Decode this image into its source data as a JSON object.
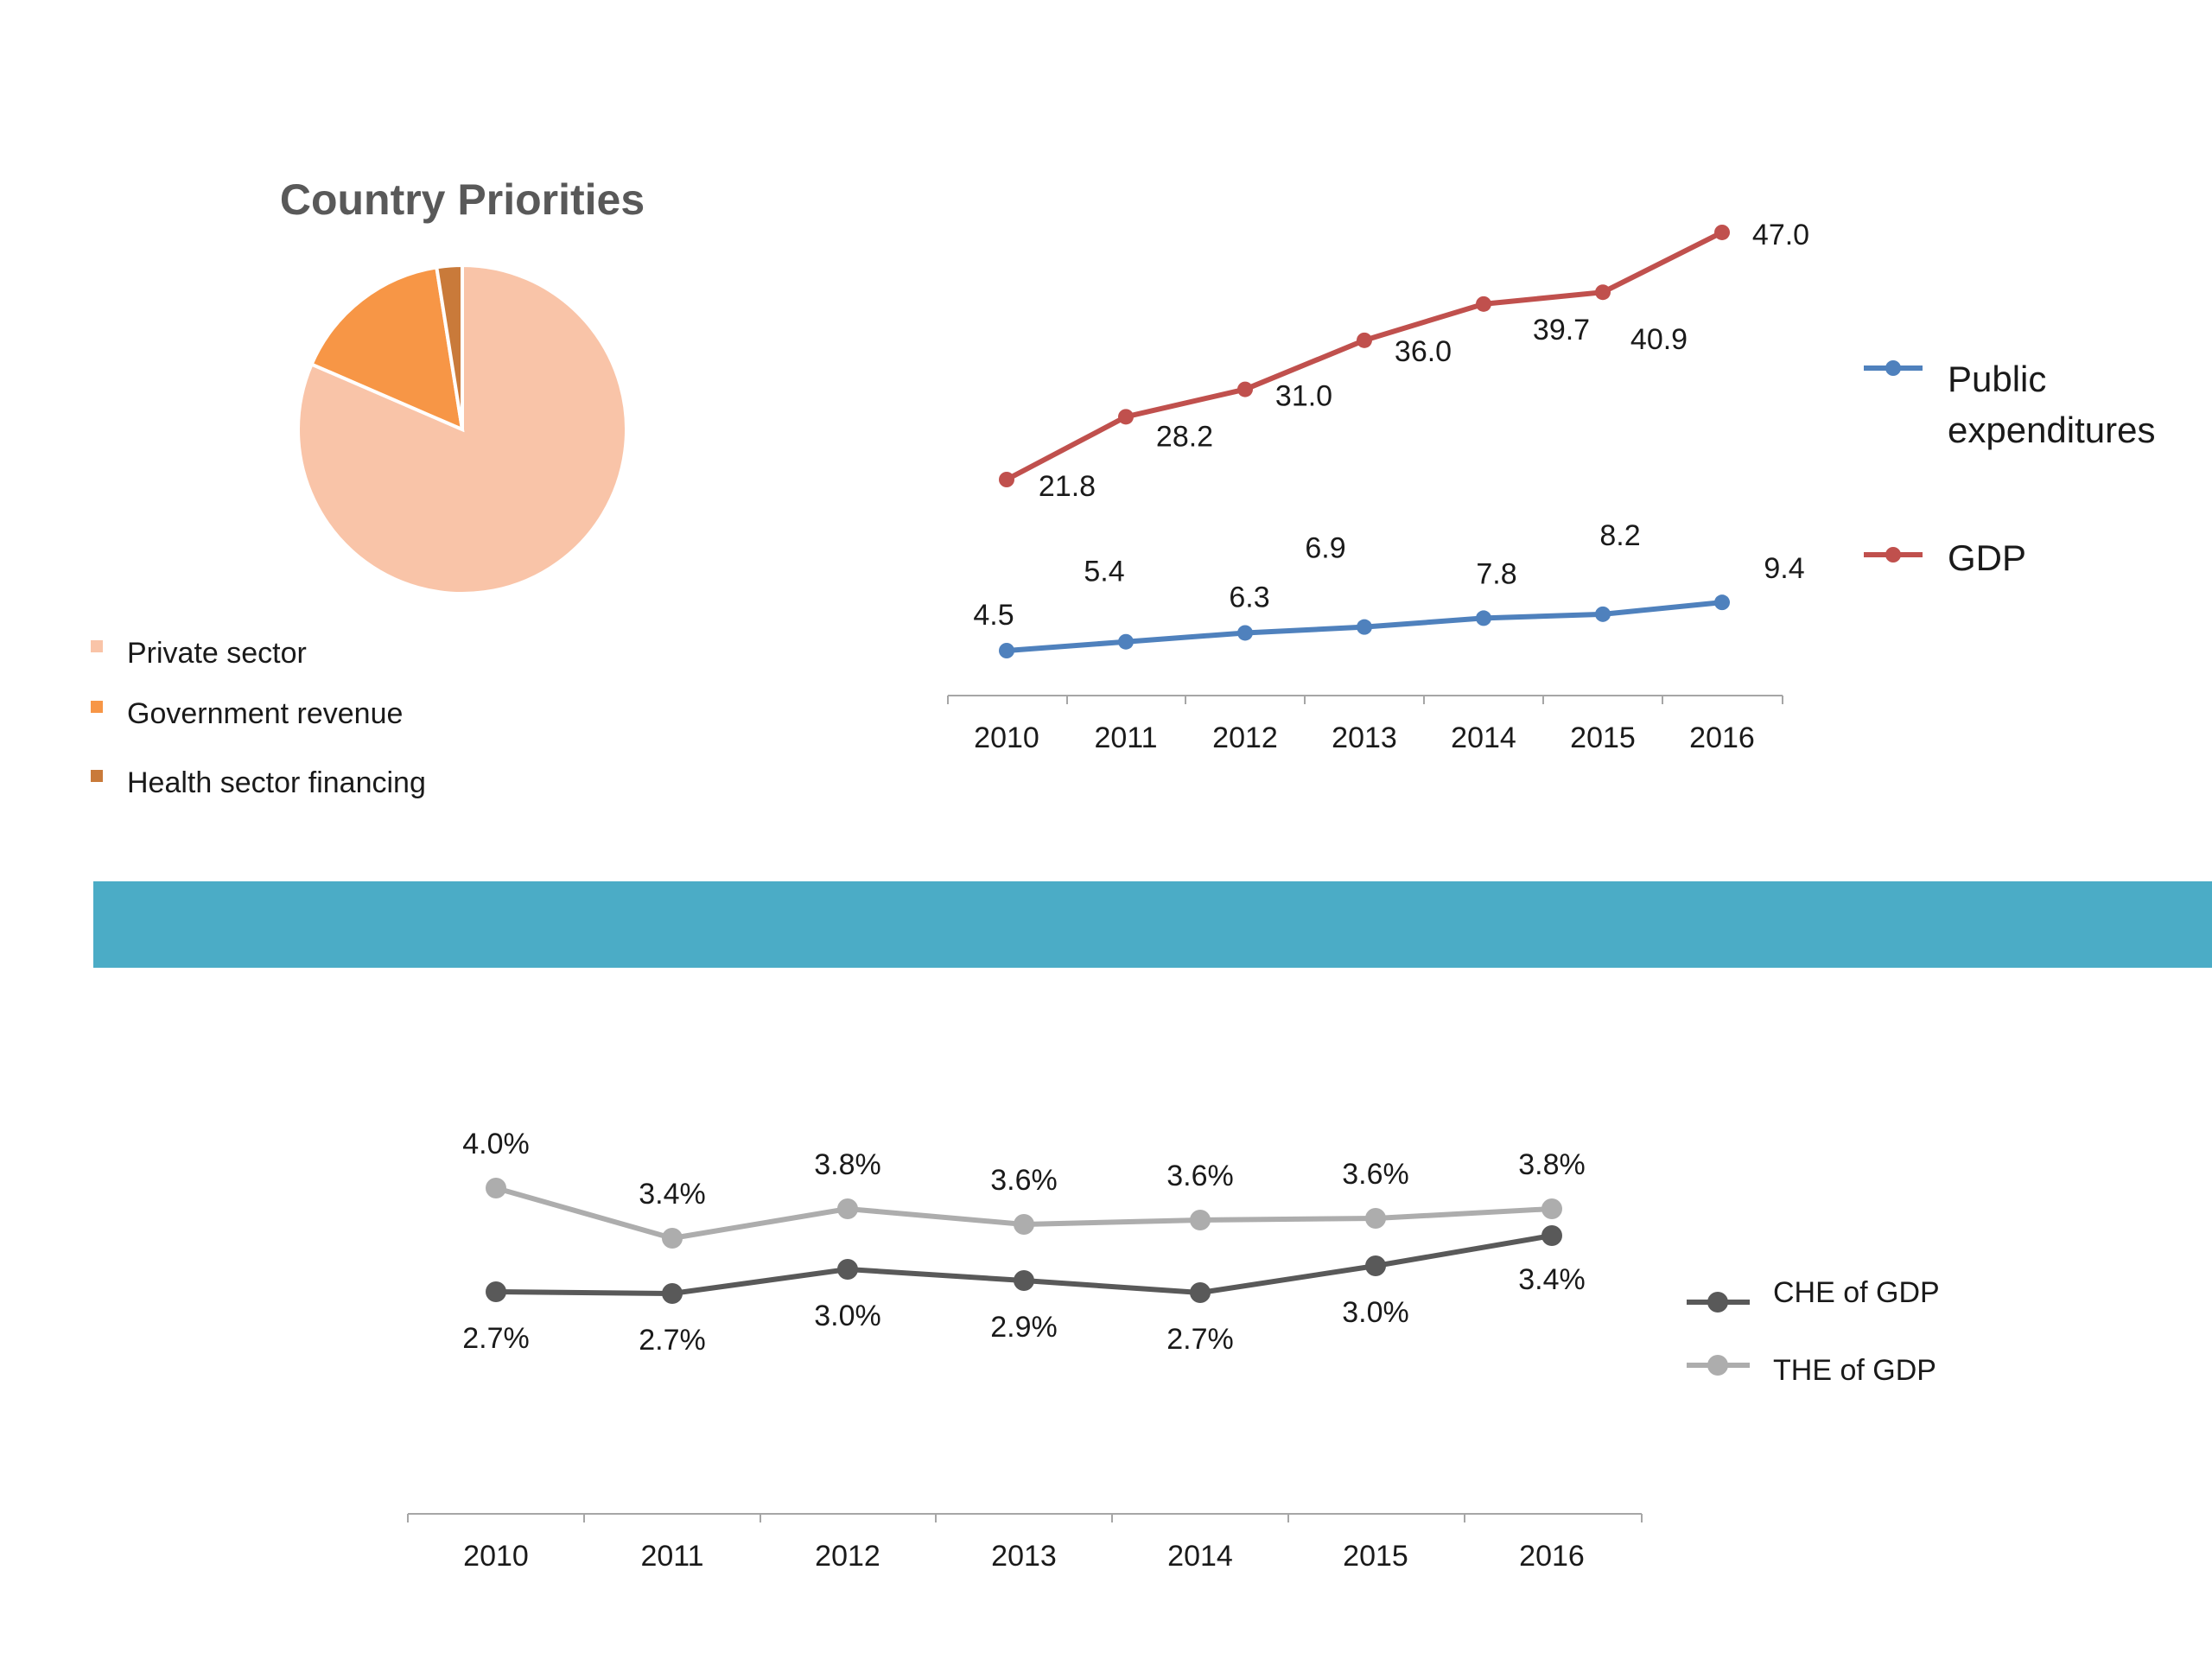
{
  "chart_data": [
    {
      "type": "pie",
      "title": "Country Priorities",
      "legend_position": "bottom-left",
      "slices": [
        {
          "label": "Private sector",
          "value": 81.5,
          "color": "#F9C4A8"
        },
        {
          "label": "Government revenue",
          "value": 16.0,
          "color": "#F79646"
        },
        {
          "label": "Health sector financing",
          "value": 2.5,
          "color": "#C97A3A"
        }
      ]
    },
    {
      "type": "line",
      "title": "",
      "categories": [
        "2010",
        "2011",
        "2012",
        "2013",
        "2014",
        "2015",
        "2016"
      ],
      "series": [
        {
          "name": "Public expenditures",
          "color": "#4F81BD",
          "values": [
            4.5,
            5.4,
            6.3,
            6.9,
            7.8,
            8.2,
            9.4
          ],
          "labels": [
            "4.5",
            "5.4",
            "6.3",
            "6.9",
            "7.8",
            "8.2",
            "9.4"
          ]
        },
        {
          "name": "GDP",
          "color": "#C0504D",
          "values": [
            21.8,
            28.2,
            31.0,
            36.0,
            39.7,
            40.9,
            47.0
          ],
          "labels": [
            "21.8",
            "28.2",
            "31.0",
            "36.0",
            "39.7",
            "40.9",
            "47.0"
          ]
        }
      ],
      "legend": {
        "public": [
          "Public",
          "expenditures"
        ],
        "gdp": "GDP"
      },
      "legend_position": "right",
      "grid": false
    },
    {
      "type": "line",
      "title": "",
      "categories": [
        "2010",
        "2011",
        "2012",
        "2013",
        "2014",
        "2015",
        "2016"
      ],
      "series": [
        {
          "name": "CHE of GDP",
          "color": "#595959",
          "values": [
            2.7,
            2.7,
            3.0,
            2.9,
            2.7,
            3.0,
            3.4
          ],
          "labels": [
            "2.7%",
            "2.7%",
            "3.0%",
            "2.9%",
            "2.7%",
            "3.0%",
            "3.4%"
          ]
        },
        {
          "name": "THE of GDP",
          "color": "#ADADAD",
          "values": [
            4.0,
            3.4,
            3.8,
            3.6,
            3.6,
            3.6,
            3.8
          ],
          "labels": [
            "4.0%",
            "3.4%",
            "3.8%",
            "3.6%",
            "3.6%",
            "3.6%",
            "3.8%"
          ]
        }
      ],
      "legend_position": "right",
      "grid": false
    }
  ],
  "colors": {
    "banner": "#4BACC6",
    "axis": "#A6A6A6",
    "text": "#1a1a1a",
    "title": "#595959"
  }
}
